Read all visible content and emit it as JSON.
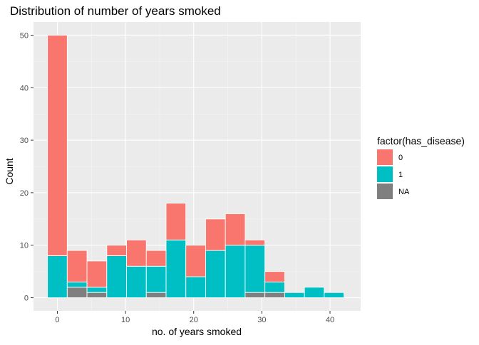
{
  "chart_data": {
    "type": "bar",
    "stacked": true,
    "title": "Distribution of number of years smoked",
    "xlabel": "no. of years smoked",
    "ylabel": "Count",
    "xlim": [
      -3.5,
      44.5
    ],
    "ylim": [
      -2.5,
      52.5
    ],
    "x_ticks": [
      0,
      10,
      20,
      30,
      40
    ],
    "y_ticks": [
      0,
      10,
      20,
      30,
      40,
      50
    ],
    "bin_width": 2.9,
    "bin_centers": [
      0,
      2.9,
      5.8,
      8.7,
      11.6,
      14.5,
      17.4,
      20.3,
      23.2,
      26.1,
      29.0,
      31.9,
      34.8,
      37.7,
      40.6
    ],
    "legend": {
      "title": "factor(has_disease)",
      "position": "right",
      "items": [
        {
          "label": "0",
          "color": "#F8766D"
        },
        {
          "label": "1",
          "color": "#00BFC4"
        },
        {
          "label": "NA",
          "color": "#7F7F7F"
        }
      ]
    },
    "series": [
      {
        "name": "NA",
        "color": "#7F7F7F",
        "values": [
          0,
          2,
          1,
          0,
          0,
          1,
          0,
          0,
          0,
          0,
          1,
          1,
          0,
          0,
          0
        ]
      },
      {
        "name": "1",
        "color": "#00BFC4",
        "values": [
          8,
          1,
          1,
          8,
          6,
          5,
          11,
          4,
          9,
          10,
          9,
          2,
          1,
          2,
          1
        ]
      },
      {
        "name": "0",
        "color": "#F8766D",
        "values": [
          42,
          6,
          5,
          2,
          5,
          3,
          7,
          6,
          6,
          6,
          1,
          2,
          0,
          0,
          0
        ]
      }
    ],
    "grid": true,
    "panel_background": "#EBEBEB",
    "bar_outline": "#FFFFFF"
  }
}
